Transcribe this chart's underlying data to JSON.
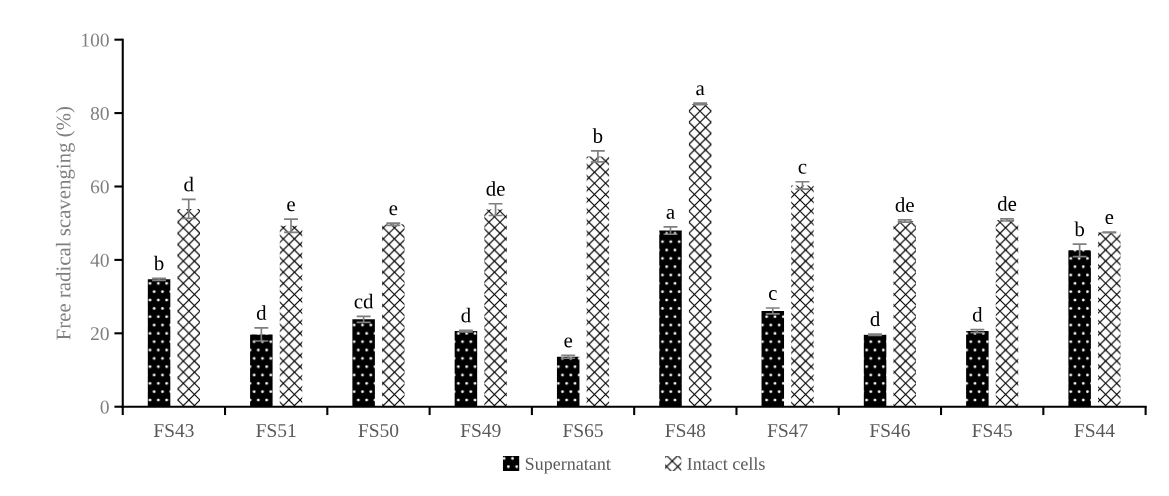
{
  "chart_data": {
    "type": "bar",
    "ylabel": "Free radical scavenging (%)",
    "categories": [
      "FS43",
      "FS51",
      "FS50",
      "FS49",
      "FS65",
      "FS48",
      "FS47",
      "FS46",
      "FS45",
      "FS44"
    ],
    "series": [
      {
        "name": "Supernatant",
        "color": "#000000",
        "values": [
          34.7,
          19.7,
          23.8,
          20.6,
          13.6,
          48.0,
          26.1,
          19.6,
          20.6,
          42.6
        ],
        "errors": [
          0.3,
          1.8,
          0.8,
          0.2,
          0.4,
          1.0,
          0.8,
          0.2,
          0.4,
          1.7
        ],
        "value_labels": [
          "b",
          "d",
          "cd",
          "d",
          "e",
          "a",
          "c",
          "d",
          "d",
          "b"
        ]
      },
      {
        "name": "Intact cells",
        "color": "#ffffff",
        "values": [
          53.9,
          49.3,
          49.7,
          53.7,
          68.2,
          82.5,
          60.3,
          50.6,
          50.9,
          47.5
        ],
        "errors": [
          2.6,
          1.8,
          0.3,
          1.6,
          1.5,
          0.2,
          1.0,
          0.3,
          0.3,
          0.1
        ],
        "value_labels": [
          "d",
          "e",
          "e",
          "de",
          "b",
          "a",
          "c",
          "de",
          "de",
          "e"
        ]
      }
    ],
    "ylim": [
      0,
      100
    ],
    "yticks": [
      0,
      20,
      40,
      60,
      80,
      100
    ],
    "grid": false,
    "legend": "bottom"
  }
}
